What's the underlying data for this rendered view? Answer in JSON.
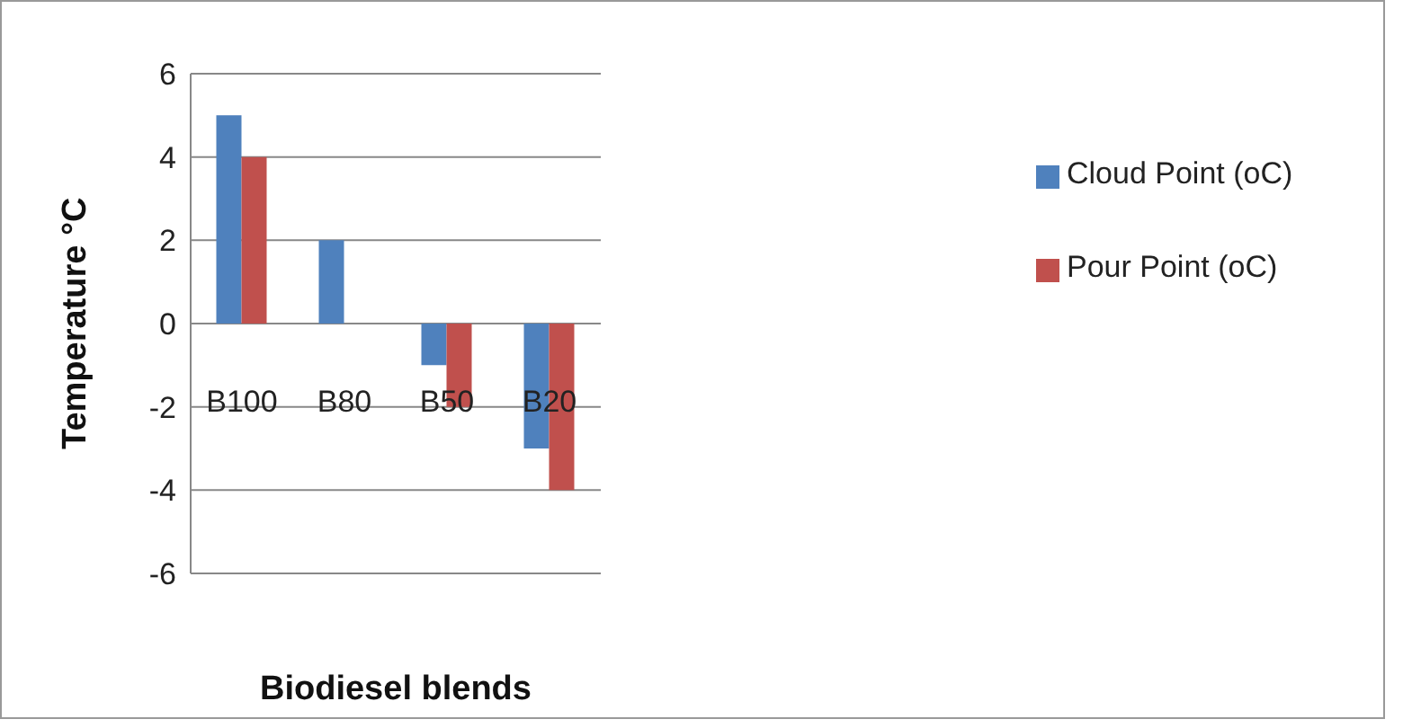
{
  "chart_data": {
    "type": "bar",
    "xlabel": "Biodiesel blends",
    "ylabel": "Temperature °C",
    "categories": [
      "B100",
      "B80",
      "B50",
      "B20"
    ],
    "series": [
      {
        "name": "Cloud Point (oC)",
        "color": "#4f81bd",
        "values": [
          5,
          2,
          -1,
          -3
        ]
      },
      {
        "name": "Pour Point (oC)",
        "color": "#c0504d",
        "values": [
          4,
          0,
          -2,
          -4
        ]
      }
    ],
    "ylim": [
      -6,
      6
    ],
    "yticks": [
      -6,
      -4,
      -2,
      0,
      2,
      4,
      6
    ],
    "grid": "y",
    "legend": "right"
  }
}
